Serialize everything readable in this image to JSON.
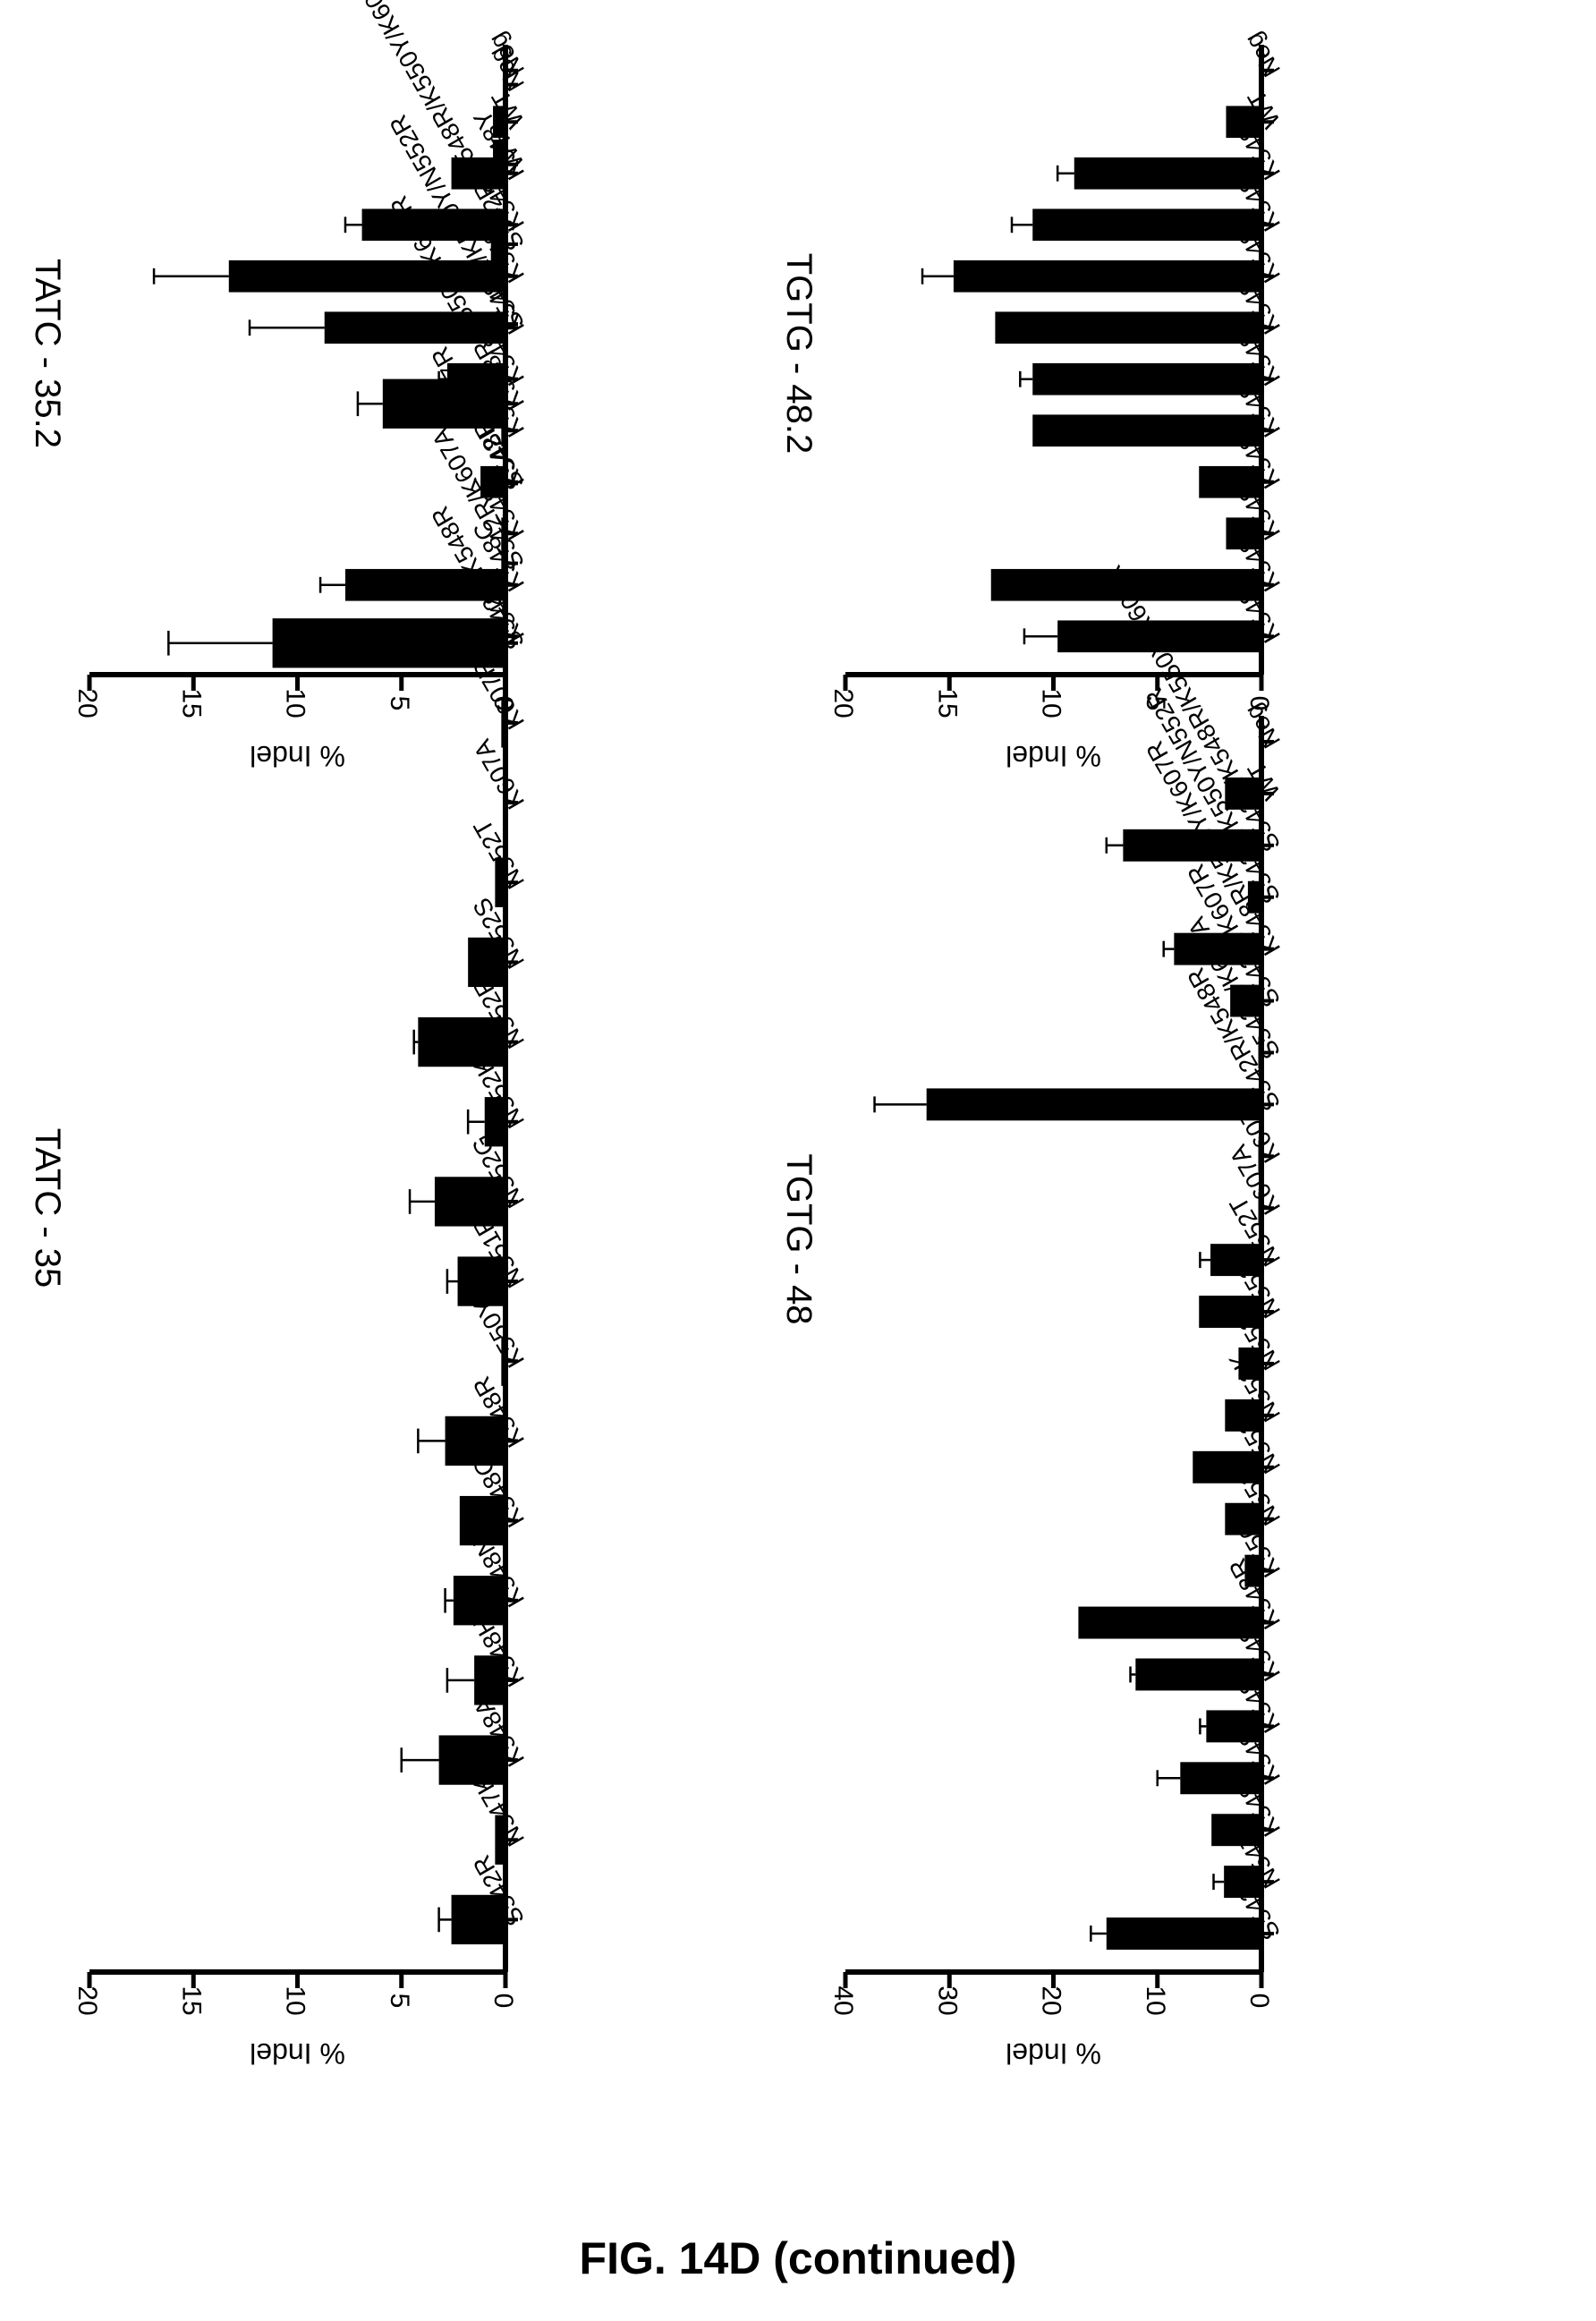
{
  "figure": {
    "caption": "FIG. 14D (continued)"
  },
  "chart_data": [
    {
      "type": "bar",
      "title": "TATC - 35",
      "ylabel": "% Indel",
      "ylim": [
        0,
        20
      ],
      "yticks": [
        0,
        5,
        10,
        15,
        20
      ],
      "categories": [
        "S542R",
        "N547K",
        "K548A",
        "K548H",
        "K548N",
        "K548Q",
        "K548R",
        "K550Y",
        "N551R",
        "N552G",
        "N552K",
        "N552R",
        "N552S",
        "N552T",
        "K607A",
        "K607R",
        "S542R/K548R",
        "S542R/K607A",
        "S542R/K607R",
        "K548R/K550Y/K607R",
        "S542R/K550Y/N552R",
        "S542R/K548R/K550Y/K607R",
        "WT",
        "Neg"
      ],
      "values": [
        2.6,
        0.5,
        3.2,
        1.5,
        2.5,
        2.2,
        2.9,
        0.2,
        2.3,
        3.4,
        1.0,
        4.2,
        1.8,
        0.5,
        0.0,
        0.2,
        11.2,
        0.2,
        0.1,
        5.9,
        0.1,
        0.7,
        0.6,
        0.1
      ],
      "errors": [
        0.6,
        0.0,
        1.8,
        1.3,
        0.4,
        0.0,
        1.3,
        0.0,
        0.5,
        1.2,
        0.8,
        0.2,
        0.0,
        0.0,
        0.0,
        0.0,
        5.0,
        0.0,
        0.0,
        1.2,
        0.0,
        0.0,
        0.0,
        0.0
      ]
    },
    {
      "type": "bar",
      "title": "TATC - 35.2",
      "ylabel": "% Indel",
      "ylim": [
        0,
        20
      ],
      "yticks": [
        0,
        5,
        10,
        15,
        20
      ],
      "categories": [
        "K548G",
        "K548C",
        "K548F",
        "K548I",
        "K548M",
        "K548S",
        "K548T",
        "K548V",
        "K548W",
        "K548Y",
        "WT",
        "Neg"
      ],
      "values": [
        2.3,
        7.7,
        0.2,
        1.2,
        0.2,
        2.8,
        8.7,
        13.3,
        6.9,
        2.6,
        0.6,
        0.1
      ],
      "errors": [
        0.5,
        1.2,
        0.0,
        0.0,
        0.0,
        0.4,
        3.6,
        3.6,
        0.8,
        0.0,
        0.0,
        0.0
      ]
    },
    {
      "type": "bar",
      "title": "TGTG - 48",
      "ylabel": "% Indel",
      "ylim": [
        0,
        40
      ],
      "yticks": [
        0,
        10,
        20,
        30,
        40
      ],
      "categories": [
        "S542R",
        "N547K",
        "K548A",
        "K548H",
        "K548N",
        "K548Q",
        "K548R",
        "K550Y",
        "N551R",
        "N552G",
        "N552K",
        "N552R",
        "N552S",
        "N552T",
        "K607A",
        "K607R",
        "S542R/K548R",
        "S542R/K607A",
        "S542R/K607R",
        "K548R/K550Y/K607R",
        "S542R/K550Y/N552R",
        "S542R/K548R/K550Y/K607R",
        "WT",
        "Neg"
      ],
      "values": [
        14.9,
        3.6,
        4.8,
        7.8,
        5.3,
        12.1,
        17.6,
        1.6,
        3.5,
        6.6,
        3.5,
        2.2,
        6.0,
        4.9,
        0.3,
        0.3,
        32.2,
        0.3,
        3.0,
        8.4,
        1.3,
        13.3,
        3.5,
        0.2
      ],
      "errors": [
        1.5,
        1.0,
        0.0,
        2.2,
        0.6,
        0.5,
        0.0,
        0.0,
        0.0,
        0.0,
        0.0,
        0.0,
        0.0,
        1.0,
        0.0,
        0.0,
        5.0,
        0.0,
        0.0,
        1.0,
        0.0,
        1.6,
        0.0,
        0.0
      ]
    },
    {
      "type": "bar",
      "title": "TGTG - 48.2",
      "ylabel": "% Indel",
      "ylim": [
        0,
        20
      ],
      "yticks": [
        0,
        5,
        10,
        15,
        20
      ],
      "categories": [
        "K548G",
        "K548C",
        "K548F",
        "K548I",
        "K548M",
        "K548S",
        "K548T",
        "K548V",
        "K548W",
        "K548Y",
        "WT",
        "Neg"
      ],
      "values": [
        9.8,
        13.0,
        1.7,
        3.0,
        11.0,
        11.0,
        12.8,
        14.8,
        11.0,
        9.0,
        1.7,
        0.1
      ],
      "errors": [
        1.6,
        0.0,
        0.0,
        0.0,
        0.0,
        0.6,
        0.0,
        1.5,
        1.0,
        0.8,
        0.0,
        0.0
      ]
    }
  ]
}
